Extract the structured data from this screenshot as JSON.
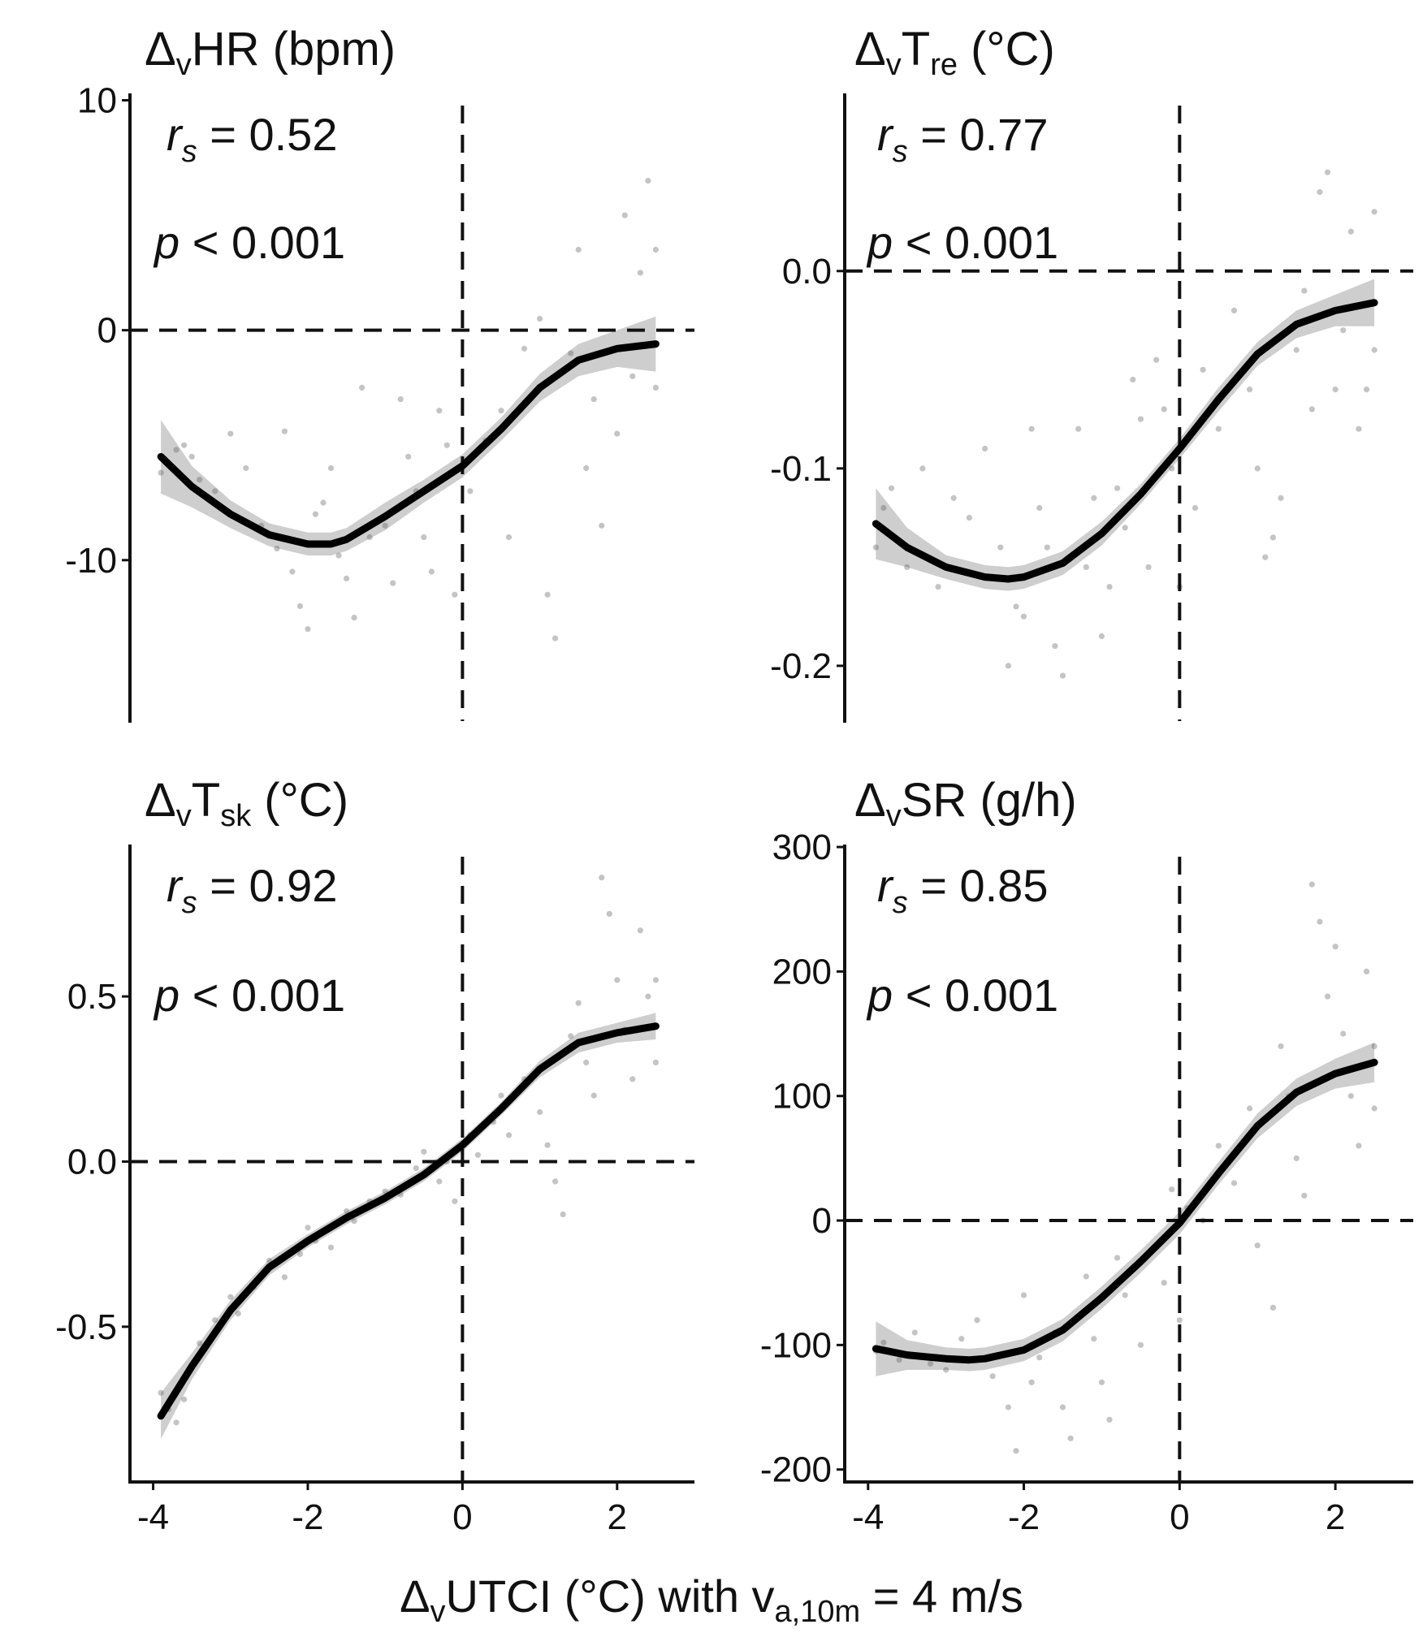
{
  "figure": {
    "xlabel": {
      "pre": "Δ",
      "pre_sub": "v",
      "main": "UTCI (°C) with v",
      "main_sub": "a,10m",
      "post": " = 4 m/s"
    }
  },
  "chart_data": [
    {
      "type": "scatter+smooth",
      "title": {
        "pre": "Δ",
        "sub1": "v",
        "main": "HR",
        "sub2": "",
        "unit": " (bpm)"
      },
      "stat_r": {
        "r": "r",
        "s": "s",
        "text": " = 0.52"
      },
      "stat_p": {
        "p": "p",
        "text": " < 0.001"
      },
      "xlim": [
        -4.3,
        3.0
      ],
      "ylim": [
        -17.0,
        10.3
      ],
      "xticks": [
        -4,
        -2,
        0,
        2
      ],
      "xtick_labels": [
        "-4",
        "-2",
        "0",
        "2"
      ],
      "yticks": [
        10,
        0,
        -10
      ],
      "ytick_labels": [
        "10",
        "0",
        "-10"
      ],
      "hline": 0,
      "vline": 0,
      "grid": false,
      "show_x_axis_ticks": false,
      "smooth": {
        "x": [
          -3.9,
          -3.5,
          -3.0,
          -2.5,
          -2.0,
          -1.7,
          -1.5,
          -1.0,
          -0.5,
          0.0,
          0.5,
          1.0,
          1.5,
          2.0,
          2.5
        ],
        "y": [
          -5.5,
          -6.8,
          -8.0,
          -8.9,
          -9.3,
          -9.3,
          -9.1,
          -8.1,
          -7.0,
          -5.9,
          -4.3,
          -2.5,
          -1.3,
          -0.8,
          -0.6
        ],
        "se": [
          1.6,
          0.9,
          0.6,
          0.5,
          0.5,
          0.5,
          0.5,
          0.6,
          0.5,
          0.5,
          0.5,
          0.6,
          0.7,
          0.8,
          1.2
        ]
      },
      "points": [
        [
          -3.9,
          -6.2
        ],
        [
          -3.8,
          -5.8
        ],
        [
          -3.7,
          -5.2
        ],
        [
          -3.6,
          -5.0
        ],
        [
          -3.5,
          -5.5
        ],
        [
          -3.4,
          -6.5
        ],
        [
          -3.2,
          -7.0
        ],
        [
          -3.0,
          -4.5
        ],
        [
          -2.8,
          -6.0
        ],
        [
          -2.6,
          -8.5
        ],
        [
          -2.4,
          -9.5
        ],
        [
          -2.3,
          -4.4
        ],
        [
          -2.2,
          -10.5
        ],
        [
          -2.1,
          -12.0
        ],
        [
          -2.0,
          -13.0
        ],
        [
          -1.9,
          -8.0
        ],
        [
          -1.8,
          -7.5
        ],
        [
          -1.7,
          -6.0
        ],
        [
          -1.6,
          -9.8
        ],
        [
          -1.5,
          -10.8
        ],
        [
          -1.4,
          -12.5
        ],
        [
          -1.3,
          -2.5
        ],
        [
          -1.2,
          -9.0
        ],
        [
          -1.0,
          -8.5
        ],
        [
          -0.9,
          -11.0
        ],
        [
          -0.8,
          -3.0
        ],
        [
          -0.7,
          -5.5
        ],
        [
          -0.6,
          -7.0
        ],
        [
          -0.5,
          -9.0
        ],
        [
          -0.4,
          -10.5
        ],
        [
          -0.3,
          -3.5
        ],
        [
          -0.2,
          -5.0
        ],
        [
          -0.1,
          -11.5
        ],
        [
          0.1,
          -7.0
        ],
        [
          0.3,
          -4.8
        ],
        [
          0.5,
          -3.5
        ],
        [
          0.6,
          -9.0
        ],
        [
          0.8,
          -0.8
        ],
        [
          1.0,
          0.5
        ],
        [
          1.1,
          -11.5
        ],
        [
          1.2,
          -13.4
        ],
        [
          1.4,
          -1.0
        ],
        [
          1.5,
          3.5
        ],
        [
          1.6,
          -6.0
        ],
        [
          1.7,
          -3.0
        ],
        [
          1.8,
          -8.5
        ],
        [
          2.0,
          -4.5
        ],
        [
          2.1,
          5.0
        ],
        [
          2.2,
          -2.0
        ],
        [
          2.3,
          2.5
        ],
        [
          2.4,
          6.5
        ],
        [
          2.5,
          3.5
        ],
        [
          2.5,
          -2.5
        ]
      ]
    },
    {
      "type": "scatter+smooth",
      "title": {
        "pre": "Δ",
        "sub1": "v",
        "main": "T",
        "sub2": "re",
        "unit": " (°C)"
      },
      "stat_r": {
        "r": "r",
        "s": "s",
        "text": " = 0.77"
      },
      "stat_p": {
        "p": "p",
        "text": " < 0.001"
      },
      "xlim": [
        -4.3,
        3.0
      ],
      "ylim": [
        -0.228,
        0.09
      ],
      "xticks": [
        -4,
        -2,
        0,
        2
      ],
      "xtick_labels": [
        "-4",
        "-2",
        "0",
        "2"
      ],
      "yticks": [
        0.0,
        -0.1,
        -0.2
      ],
      "ytick_labels": [
        "0.0",
        "-0.1",
        "-0.2"
      ],
      "hline": 0,
      "vline": 0,
      "grid": false,
      "show_x_axis_ticks": false,
      "smooth": {
        "x": [
          -3.9,
          -3.5,
          -3.0,
          -2.5,
          -2.2,
          -2.0,
          -1.5,
          -1.0,
          -0.5,
          0.0,
          0.5,
          1.0,
          1.5,
          2.0,
          2.5
        ],
        "y": [
          -0.128,
          -0.14,
          -0.15,
          -0.155,
          -0.156,
          -0.155,
          -0.148,
          -0.133,
          -0.113,
          -0.09,
          -0.065,
          -0.042,
          -0.027,
          -0.02,
          -0.016
        ],
        "se": [
          0.018,
          0.01,
          0.006,
          0.006,
          0.006,
          0.006,
          0.006,
          0.006,
          0.005,
          0.005,
          0.006,
          0.006,
          0.007,
          0.008,
          0.012
        ]
      },
      "points": [
        [
          -3.9,
          -0.14
        ],
        [
          -3.8,
          -0.12
        ],
        [
          -3.7,
          -0.11
        ],
        [
          -3.5,
          -0.15
        ],
        [
          -3.3,
          -0.1
        ],
        [
          -3.1,
          -0.16
        ],
        [
          -2.9,
          -0.115
        ],
        [
          -2.7,
          -0.125
        ],
        [
          -2.5,
          -0.09
        ],
        [
          -2.3,
          -0.14
        ],
        [
          -2.2,
          -0.2
        ],
        [
          -2.1,
          -0.17
        ],
        [
          -2.0,
          -0.175
        ],
        [
          -1.9,
          -0.08
        ],
        [
          -1.8,
          -0.12
        ],
        [
          -1.7,
          -0.14
        ],
        [
          -1.6,
          -0.19
        ],
        [
          -1.5,
          -0.205
        ],
        [
          -1.3,
          -0.08
        ],
        [
          -1.2,
          -0.15
        ],
        [
          -1.1,
          -0.115
        ],
        [
          -1.0,
          -0.185
        ],
        [
          -0.9,
          -0.16
        ],
        [
          -0.8,
          -0.11
        ],
        [
          -0.7,
          -0.13
        ],
        [
          -0.6,
          -0.055
        ],
        [
          -0.5,
          -0.075
        ],
        [
          -0.4,
          -0.15
        ],
        [
          -0.3,
          -0.045
        ],
        [
          -0.2,
          -0.07
        ],
        [
          -0.1,
          -0.1
        ],
        [
          0.0,
          -0.16
        ],
        [
          0.2,
          -0.12
        ],
        [
          0.3,
          -0.05
        ],
        [
          0.5,
          -0.08
        ],
        [
          0.7,
          -0.02
        ],
        [
          0.9,
          -0.06
        ],
        [
          1.0,
          -0.1
        ],
        [
          1.1,
          -0.145
        ],
        [
          1.2,
          -0.135
        ],
        [
          1.3,
          -0.115
        ],
        [
          1.5,
          -0.04
        ],
        [
          1.6,
          -0.01
        ],
        [
          1.7,
          -0.07
        ],
        [
          1.8,
          0.04
        ],
        [
          1.9,
          0.05
        ],
        [
          2.0,
          -0.06
        ],
        [
          2.1,
          -0.03
        ],
        [
          2.2,
          0.02
        ],
        [
          2.3,
          -0.08
        ],
        [
          2.4,
          -0.06
        ],
        [
          2.5,
          0.03
        ],
        [
          2.5,
          -0.04
        ]
      ]
    },
    {
      "type": "scatter+smooth",
      "title": {
        "pre": "Δ",
        "sub1": "v",
        "main": "T",
        "sub2": "sk",
        "unit": " (°C)"
      },
      "stat_r": {
        "r": "r",
        "s": "s",
        "text": " = 0.92"
      },
      "stat_p": {
        "p": "p",
        "text": " < 0.001"
      },
      "xlim": [
        -4.3,
        3.0
      ],
      "ylim": [
        -0.97,
        0.96
      ],
      "xticks": [
        -4,
        -2,
        0,
        2
      ],
      "xtick_labels": [
        "-4",
        "-2",
        "0",
        "2"
      ],
      "yticks": [
        0.5,
        0.0,
        -0.5
      ],
      "ytick_labels": [
        "0.5",
        "0.0",
        "-0.5"
      ],
      "hline": 0,
      "vline": 0,
      "grid": false,
      "show_x_axis_ticks": true,
      "smooth": {
        "x": [
          -3.9,
          -3.5,
          -3.0,
          -2.5,
          -2.0,
          -1.5,
          -1.0,
          -0.5,
          0.0,
          0.5,
          1.0,
          1.5,
          2.0,
          2.5
        ],
        "y": [
          -0.77,
          -0.62,
          -0.45,
          -0.32,
          -0.24,
          -0.17,
          -0.11,
          -0.04,
          0.05,
          0.16,
          0.28,
          0.36,
          0.39,
          0.41
        ],
        "se": [
          0.07,
          0.04,
          0.03,
          0.025,
          0.02,
          0.02,
          0.02,
          0.02,
          0.02,
          0.02,
          0.025,
          0.03,
          0.03,
          0.04
        ]
      },
      "points": [
        [
          -3.9,
          -0.7
        ],
        [
          -3.8,
          -0.75
        ],
        [
          -3.7,
          -0.79
        ],
        [
          -3.6,
          -0.72
        ],
        [
          -3.4,
          -0.55
        ],
        [
          -3.2,
          -0.48
        ],
        [
          -3.0,
          -0.41
        ],
        [
          -2.9,
          -0.46
        ],
        [
          -2.7,
          -0.38
        ],
        [
          -2.5,
          -0.3
        ],
        [
          -2.3,
          -0.35
        ],
        [
          -2.1,
          -0.28
        ],
        [
          -2.0,
          -0.2
        ],
        [
          -1.9,
          -0.24
        ],
        [
          -1.7,
          -0.26
        ],
        [
          -1.5,
          -0.15
        ],
        [
          -1.4,
          -0.18
        ],
        [
          -1.2,
          -0.12
        ],
        [
          -1.0,
          -0.09
        ],
        [
          -0.8,
          -0.1
        ],
        [
          -0.6,
          -0.02
        ],
        [
          -0.5,
          0.03
        ],
        [
          -0.3,
          -0.06
        ],
        [
          -0.2,
          0.0
        ],
        [
          -0.1,
          -0.12
        ],
        [
          0.1,
          0.08
        ],
        [
          0.2,
          0.02
        ],
        [
          0.4,
          0.12
        ],
        [
          0.5,
          0.2
        ],
        [
          0.6,
          0.08
        ],
        [
          0.8,
          0.25
        ],
        [
          1.0,
          0.15
        ],
        [
          1.1,
          0.05
        ],
        [
          1.2,
          -0.06
        ],
        [
          1.3,
          -0.16
        ],
        [
          1.4,
          0.38
        ],
        [
          1.5,
          0.48
        ],
        [
          1.6,
          0.3
        ],
        [
          1.7,
          0.2
        ],
        [
          1.8,
          0.86
        ],
        [
          1.9,
          0.75
        ],
        [
          2.0,
          0.55
        ],
        [
          2.1,
          0.4
        ],
        [
          2.2,
          0.25
        ],
        [
          2.3,
          0.7
        ],
        [
          2.4,
          0.5
        ],
        [
          2.5,
          0.3
        ],
        [
          2.5,
          0.55
        ]
      ]
    },
    {
      "type": "scatter+smooth",
      "title": {
        "pre": "Δ",
        "sub1": "v",
        "main": "SR",
        "sub2": "",
        "unit": " (g/h)"
      },
      "stat_r": {
        "r": "r",
        "s": "s",
        "text": " = 0.85"
      },
      "stat_p": {
        "p": "p",
        "text": " < 0.001"
      },
      "xlim": [
        -4.3,
        3.0
      ],
      "ylim": [
        -210,
        302
      ],
      "xticks": [
        -4,
        -2,
        0,
        2
      ],
      "xtick_labels": [
        "-4",
        "-2",
        "0",
        "2"
      ],
      "yticks": [
        300,
        200,
        100,
        0,
        -100,
        -200
      ],
      "ytick_labels": [
        "300",
        "200",
        "100",
        "0",
        "-100",
        "-200"
      ],
      "hline": 0,
      "vline": 0,
      "grid": false,
      "show_x_axis_ticks": true,
      "smooth": {
        "x": [
          -3.9,
          -3.5,
          -3.0,
          -2.7,
          -2.5,
          -2.0,
          -1.5,
          -1.0,
          -0.5,
          0.0,
          0.5,
          1.0,
          1.5,
          2.0,
          2.5
        ],
        "y": [
          -103,
          -108,
          -111,
          -112,
          -111,
          -104,
          -88,
          -62,
          -33,
          -2,
          38,
          76,
          103,
          118,
          127
        ],
        "se": [
          22,
          12,
          9,
          9,
          9,
          9,
          9,
          9,
          9,
          9,
          9,
          10,
          11,
          12,
          16
        ]
      },
      "points": [
        [
          -3.9,
          -105
        ],
        [
          -3.8,
          -98
        ],
        [
          -3.6,
          -112
        ],
        [
          -3.4,
          -90
        ],
        [
          -3.2,
          -115
        ],
        [
          -3.0,
          -120
        ],
        [
          -2.8,
          -95
        ],
        [
          -2.6,
          -80
        ],
        [
          -2.4,
          -125
        ],
        [
          -2.2,
          -150
        ],
        [
          -2.1,
          -185
        ],
        [
          -2.0,
          -60
        ],
        [
          -1.9,
          -130
        ],
        [
          -1.8,
          -110
        ],
        [
          -1.6,
          -90
        ],
        [
          -1.5,
          -150
        ],
        [
          -1.4,
          -175
        ],
        [
          -1.2,
          -45
        ],
        [
          -1.1,
          -95
        ],
        [
          -1.0,
          -130
        ],
        [
          -0.9,
          -160
        ],
        [
          -0.8,
          -30
        ],
        [
          -0.7,
          -60
        ],
        [
          -0.5,
          -100
        ],
        [
          -0.3,
          -20
        ],
        [
          -0.2,
          -50
        ],
        [
          -0.1,
          25
        ],
        [
          0.0,
          -80
        ],
        [
          0.1,
          10
        ],
        [
          0.3,
          0
        ],
        [
          0.5,
          60
        ],
        [
          0.7,
          30
        ],
        [
          0.9,
          90
        ],
        [
          1.0,
          -20
        ],
        [
          1.2,
          -70
        ],
        [
          1.3,
          140
        ],
        [
          1.4,
          100
        ],
        [
          1.5,
          50
        ],
        [
          1.6,
          20
        ],
        [
          1.7,
          270
        ],
        [
          1.8,
          240
        ],
        [
          1.9,
          180
        ],
        [
          2.0,
          220
        ],
        [
          2.1,
          150
        ],
        [
          2.2,
          100
        ],
        [
          2.3,
          60
        ],
        [
          2.4,
          200
        ],
        [
          2.5,
          140
        ],
        [
          2.5,
          90
        ]
      ]
    }
  ]
}
